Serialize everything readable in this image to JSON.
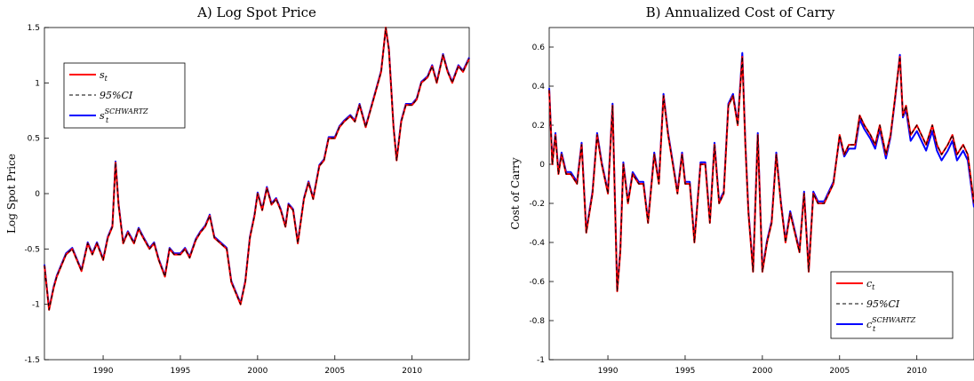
{
  "chart_data": [
    {
      "type": "line",
      "title": "A) Log Spot Price",
      "xlabel": "",
      "ylabel": "Log Spot Price",
      "xlim": [
        1986.2,
        2013.7
      ],
      "ylim": [
        -1.5,
        1.5
      ],
      "xticks": [
        "1990",
        "1995",
        "2000",
        "2005",
        "2010"
      ],
      "yticks": [
        "-1.5",
        "-1",
        "-0.5",
        "0",
        "0.5",
        "1",
        "1.5"
      ],
      "legend_position": "upper-left",
      "colors": {
        "spot": "#ff0000",
        "ci": "#000000",
        "schwartz": "#0000ff"
      },
      "legend": [
        {
          "key": "spot",
          "label_base": "s",
          "label_sub": "t",
          "label_sup": "",
          "style": "solid"
        },
        {
          "key": "ci",
          "label_base": "95%CI",
          "label_sub": "",
          "label_sup": "",
          "style": "dashed"
        },
        {
          "key": "schwartz",
          "label_base": "s",
          "label_sub": "t",
          "label_sup": "SCHWARTZ",
          "style": "solid"
        }
      ],
      "x": [
        1986.2,
        1986.5,
        1986.8,
        1987.0,
        1987.3,
        1987.6,
        1988.0,
        1988.3,
        1988.6,
        1989.0,
        1989.3,
        1989.6,
        1990.0,
        1990.3,
        1990.6,
        1990.8,
        1991.0,
        1991.3,
        1991.6,
        1992.0,
        1992.3,
        1992.6,
        1993.0,
        1993.3,
        1993.6,
        1994.0,
        1994.3,
        1994.6,
        1995.0,
        1995.3,
        1995.6,
        1996.0,
        1996.3,
        1996.6,
        1996.9,
        1997.2,
        1997.6,
        1998.0,
        1998.3,
        1998.6,
        1998.9,
        1999.2,
        1999.5,
        1999.8,
        2000.0,
        2000.3,
        2000.6,
        2000.9,
        2001.2,
        2001.5,
        2001.8,
        2002.0,
        2002.3,
        2002.6,
        2003.0,
        2003.3,
        2003.6,
        2004.0,
        2004.3,
        2004.6,
        2005.0,
        2005.3,
        2005.6,
        2006.0,
        2006.3,
        2006.6,
        2007.0,
        2007.3,
        2007.6,
        2008.0,
        2008.3,
        2008.5,
        2008.8,
        2009.0,
        2009.3,
        2009.6,
        2010.0,
        2010.3,
        2010.6,
        2011.0,
        2011.3,
        2011.6,
        2012.0,
        2012.3,
        2012.6,
        2013.0,
        2013.3,
        2013.7
      ],
      "series": [
        {
          "key": "spot",
          "values": [
            -0.65,
            -1.05,
            -0.85,
            -0.75,
            -0.65,
            -0.55,
            -0.5,
            -0.6,
            -0.7,
            -0.45,
            -0.55,
            -0.45,
            -0.6,
            -0.4,
            -0.3,
            0.28,
            -0.1,
            -0.45,
            -0.35,
            -0.45,
            -0.32,
            -0.4,
            -0.5,
            -0.45,
            -0.6,
            -0.75,
            -0.5,
            -0.55,
            -0.55,
            -0.5,
            -0.58,
            -0.42,
            -0.35,
            -0.3,
            -0.2,
            -0.4,
            -0.45,
            -0.5,
            -0.8,
            -0.9,
            -1.0,
            -0.8,
            -0.4,
            -0.2,
            0.0,
            -0.15,
            0.05,
            -0.1,
            -0.05,
            -0.15,
            -0.3,
            -0.1,
            -0.15,
            -0.45,
            -0.05,
            0.1,
            -0.05,
            0.25,
            0.3,
            0.5,
            0.5,
            0.6,
            0.65,
            0.7,
            0.65,
            0.8,
            0.6,
            0.75,
            0.9,
            1.1,
            1.5,
            1.3,
            0.6,
            0.3,
            0.65,
            0.8,
            0.8,
            0.85,
            1.0,
            1.05,
            1.15,
            1.0,
            1.25,
            1.1,
            1.0,
            1.15,
            1.1,
            1.22
          ]
        },
        {
          "key": "ci",
          "values": [
            -0.65,
            -1.05,
            -0.85,
            -0.75,
            -0.65,
            -0.55,
            -0.5,
            -0.6,
            -0.7,
            -0.45,
            -0.55,
            -0.45,
            -0.6,
            -0.4,
            -0.3,
            0.28,
            -0.1,
            -0.45,
            -0.35,
            -0.45,
            -0.32,
            -0.4,
            -0.5,
            -0.45,
            -0.6,
            -0.75,
            -0.5,
            -0.55,
            -0.55,
            -0.5,
            -0.58,
            -0.42,
            -0.35,
            -0.3,
            -0.2,
            -0.4,
            -0.45,
            -0.5,
            -0.8,
            -0.9,
            -1.0,
            -0.8,
            -0.4,
            -0.2,
            0.0,
            -0.15,
            0.05,
            -0.1,
            -0.05,
            -0.15,
            -0.3,
            -0.1,
            -0.15,
            -0.45,
            -0.05,
            0.1,
            -0.05,
            0.25,
            0.3,
            0.5,
            0.5,
            0.6,
            0.65,
            0.7,
            0.65,
            0.8,
            0.6,
            0.75,
            0.9,
            1.1,
            1.5,
            1.3,
            0.6,
            0.3,
            0.65,
            0.8,
            0.8,
            0.85,
            1.0,
            1.05,
            1.15,
            1.0,
            1.25,
            1.1,
            1.0,
            1.15,
            1.1,
            1.22
          ]
        },
        {
          "key": "schwartz",
          "values": [
            -0.64,
            -1.04,
            -0.84,
            -0.74,
            -0.64,
            -0.54,
            -0.49,
            -0.59,
            -0.69,
            -0.44,
            -0.54,
            -0.44,
            -0.59,
            -0.39,
            -0.29,
            0.29,
            -0.09,
            -0.44,
            -0.34,
            -0.44,
            -0.31,
            -0.39,
            -0.49,
            -0.44,
            -0.59,
            -0.74,
            -0.49,
            -0.54,
            -0.54,
            -0.49,
            -0.57,
            -0.41,
            -0.34,
            -0.29,
            -0.19,
            -0.39,
            -0.44,
            -0.49,
            -0.79,
            -0.89,
            -0.99,
            -0.79,
            -0.39,
            -0.19,
            0.01,
            -0.14,
            0.06,
            -0.09,
            -0.04,
            -0.14,
            -0.29,
            -0.09,
            -0.14,
            -0.44,
            -0.04,
            0.11,
            -0.04,
            0.26,
            0.31,
            0.51,
            0.51,
            0.61,
            0.66,
            0.71,
            0.66,
            0.81,
            0.61,
            0.76,
            0.91,
            1.11,
            1.49,
            1.31,
            0.61,
            0.31,
            0.66,
            0.81,
            0.81,
            0.86,
            1.01,
            1.06,
            1.16,
            1.01,
            1.26,
            1.11,
            1.01,
            1.16,
            1.11,
            1.23
          ]
        }
      ]
    },
    {
      "type": "line",
      "title": "B) Annualized Cost of Carry",
      "xlabel": "",
      "ylabel": "Cost of Carry",
      "xlim": [
        1986.2,
        2013.7
      ],
      "ylim": [
        -1.0,
        0.7
      ],
      "xticks": [
        "1990",
        "1995",
        "2000",
        "2005",
        "2010"
      ],
      "yticks": [
        "-1",
        "-0.8",
        "-0.6",
        "-0.4",
        "-0.2",
        "0",
        "0.2",
        "0.4",
        "0.6"
      ],
      "legend_position": "lower-right",
      "colors": {
        "carry": "#ff0000",
        "ci": "#000000",
        "schwartz": "#0000ff"
      },
      "legend": [
        {
          "key": "carry",
          "label_base": "c",
          "label_sub": "t",
          "label_sup": "",
          "style": "solid"
        },
        {
          "key": "ci",
          "label_base": "95%CI",
          "label_sub": "",
          "label_sup": "",
          "style": "dashed"
        },
        {
          "key": "schwartz",
          "label_base": "c",
          "label_sub": "t",
          "label_sup": "SCHWARTZ",
          "style": "solid"
        }
      ],
      "x": [
        1986.2,
        1986.4,
        1986.6,
        1986.8,
        1987.0,
        1987.3,
        1987.6,
        1988.0,
        1988.3,
        1988.6,
        1989.0,
        1989.3,
        1989.6,
        1990.0,
        1990.3,
        1990.6,
        1990.8,
        1991.0,
        1991.3,
        1991.6,
        1992.0,
        1992.3,
        1992.6,
        1993.0,
        1993.3,
        1993.6,
        1993.9,
        1994.2,
        1994.5,
        1994.8,
        1995.0,
        1995.3,
        1995.6,
        1996.0,
        1996.3,
        1996.6,
        1996.9,
        1997.2,
        1997.5,
        1997.8,
        1998.1,
        1998.4,
        1998.7,
        1998.9,
        1999.1,
        1999.4,
        1999.7,
        2000.0,
        2000.3,
        2000.6,
        2000.9,
        2001.2,
        2001.5,
        2001.8,
        2002.1,
        2002.4,
        2002.7,
        2003.0,
        2003.3,
        2003.6,
        2004.0,
        2004.3,
        2004.6,
        2005.0,
        2005.3,
        2005.6,
        2006.0,
        2006.3,
        2006.6,
        2007.0,
        2007.3,
        2007.6,
        2008.0,
        2008.3,
        2008.6,
        2008.9,
        2009.1,
        2009.3,
        2009.6,
        2010.0,
        2010.3,
        2010.6,
        2011.0,
        2011.3,
        2011.6,
        2012.0,
        2012.3,
        2012.6,
        2013.0,
        2013.3,
        2013.7
      ],
      "series": [
        {
          "key": "carry",
          "values": [
            0.38,
            0.0,
            0.15,
            -0.05,
            0.05,
            -0.05,
            -0.05,
            -0.1,
            0.1,
            -0.35,
            -0.15,
            0.15,
            0.0,
            -0.15,
            0.3,
            -0.65,
            -0.45,
            0.0,
            -0.2,
            -0.05,
            -0.1,
            -0.1,
            -0.3,
            0.05,
            -0.1,
            0.35,
            0.15,
            0.0,
            -0.15,
            0.05,
            -0.1,
            -0.1,
            -0.4,
            0.0,
            0.0,
            -0.3,
            0.1,
            -0.2,
            -0.15,
            0.3,
            0.35,
            0.2,
            0.55,
            0.1,
            -0.25,
            -0.55,
            0.15,
            -0.55,
            -0.4,
            -0.3,
            0.05,
            -0.2,
            -0.4,
            -0.25,
            -0.35,
            -0.45,
            -0.15,
            -0.55,
            -0.15,
            -0.2,
            -0.2,
            -0.15,
            -0.1,
            0.15,
            0.05,
            0.1,
            0.1,
            0.25,
            0.2,
            0.15,
            0.1,
            0.2,
            0.05,
            0.15,
            0.35,
            0.55,
            0.25,
            0.3,
            0.15,
            0.2,
            0.15,
            0.1,
            0.2,
            0.1,
            0.05,
            0.1,
            0.15,
            0.05,
            0.1,
            0.05,
            -0.2
          ]
        },
        {
          "key": "ci",
          "values": [
            0.38,
            0.0,
            0.15,
            -0.05,
            0.05,
            -0.05,
            -0.05,
            -0.1,
            0.1,
            -0.35,
            -0.15,
            0.15,
            0.0,
            -0.15,
            0.3,
            -0.65,
            -0.45,
            0.0,
            -0.2,
            -0.05,
            -0.1,
            -0.1,
            -0.3,
            0.05,
            -0.1,
            0.35,
            0.15,
            0.0,
            -0.15,
            0.05,
            -0.1,
            -0.1,
            -0.4,
            0.0,
            0.0,
            -0.3,
            0.1,
            -0.2,
            -0.15,
            0.3,
            0.35,
            0.2,
            0.55,
            0.1,
            -0.25,
            -0.55,
            0.15,
            -0.55,
            -0.4,
            -0.3,
            0.05,
            -0.2,
            -0.4,
            -0.25,
            -0.35,
            -0.45,
            -0.15,
            -0.55,
            -0.15,
            -0.2,
            -0.2,
            -0.15,
            -0.1,
            0.15,
            0.05,
            0.1,
            0.1,
            0.25,
            0.2,
            0.15,
            0.1,
            0.2,
            0.05,
            0.15,
            0.35,
            0.55,
            0.25,
            0.3,
            0.15,
            0.2,
            0.15,
            0.1,
            0.2,
            0.1,
            0.05,
            0.1,
            0.15,
            0.05,
            0.1,
            0.05,
            -0.2
          ]
        },
        {
          "key": "schwartz",
          "values": [
            0.39,
            0.01,
            0.16,
            -0.04,
            0.06,
            -0.04,
            -0.04,
            -0.09,
            0.11,
            -0.34,
            -0.14,
            0.16,
            0.01,
            -0.14,
            0.31,
            -0.64,
            -0.44,
            0.01,
            -0.19,
            -0.04,
            -0.09,
            -0.09,
            -0.29,
            0.06,
            -0.09,
            0.36,
            0.16,
            0.01,
            -0.14,
            0.06,
            -0.09,
            -0.09,
            -0.39,
            0.01,
            0.01,
            -0.29,
            0.11,
            -0.19,
            -0.14,
            0.31,
            0.36,
            0.21,
            0.57,
            0.11,
            -0.24,
            -0.54,
            0.16,
            -0.54,
            -0.39,
            -0.29,
            0.06,
            -0.19,
            -0.39,
            -0.24,
            -0.34,
            -0.44,
            -0.14,
            -0.54,
            -0.14,
            -0.19,
            -0.19,
            -0.14,
            -0.09,
            0.14,
            0.04,
            0.08,
            0.08,
            0.23,
            0.18,
            0.13,
            0.08,
            0.18,
            0.03,
            0.14,
            0.34,
            0.56,
            0.24,
            0.28,
            0.12,
            0.17,
            0.12,
            0.07,
            0.17,
            0.07,
            0.02,
            0.07,
            0.12,
            0.02,
            0.07,
            0.02,
            -0.22
          ]
        }
      ]
    }
  ]
}
